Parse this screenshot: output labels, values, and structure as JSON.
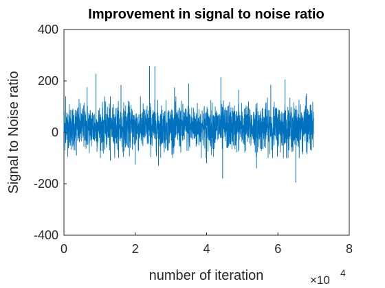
{
  "chart_data": {
    "type": "line",
    "title": "Improvement in signal to noise ratio",
    "xlabel": "number of iteration",
    "ylabel": "Signal to Noise ratio",
    "x_exponent_label": "×10",
    "x_exponent_power": "4",
    "xlim": [
      0,
      8
    ],
    "ylim": [
      -400,
      400
    ],
    "xticks": [
      0,
      2,
      4,
      6,
      8
    ],
    "xtick_labels": [
      "0",
      "2",
      "4",
      "6",
      "8"
    ],
    "yticks": [
      -400,
      -200,
      0,
      200,
      400
    ],
    "ytick_labels": [
      "-400",
      "-200",
      "0",
      "200",
      "400"
    ],
    "grid": false,
    "series": [
      {
        "color": "#0072BD",
        "x_range": [
          0,
          7
        ],
        "approx_points": 70000,
        "typical_envelope": [
          -60,
          100
        ],
        "x": [
          0.05,
          0.35,
          0.65,
          0.9,
          1.3,
          1.6,
          2.0,
          2.4,
          2.55,
          2.65,
          3.1,
          3.5,
          4.0,
          4.4,
          4.45,
          4.9,
          5.4,
          5.8,
          6.2,
          6.5,
          6.8,
          6.95
        ],
        "values": [
          140,
          -90,
          175,
          228,
          -110,
          185,
          -125,
          258,
          257,
          -130,
          175,
          190,
          -120,
          215,
          -180,
          165,
          -140,
          185,
          205,
          -195,
          150,
          -70
        ]
      }
    ]
  }
}
